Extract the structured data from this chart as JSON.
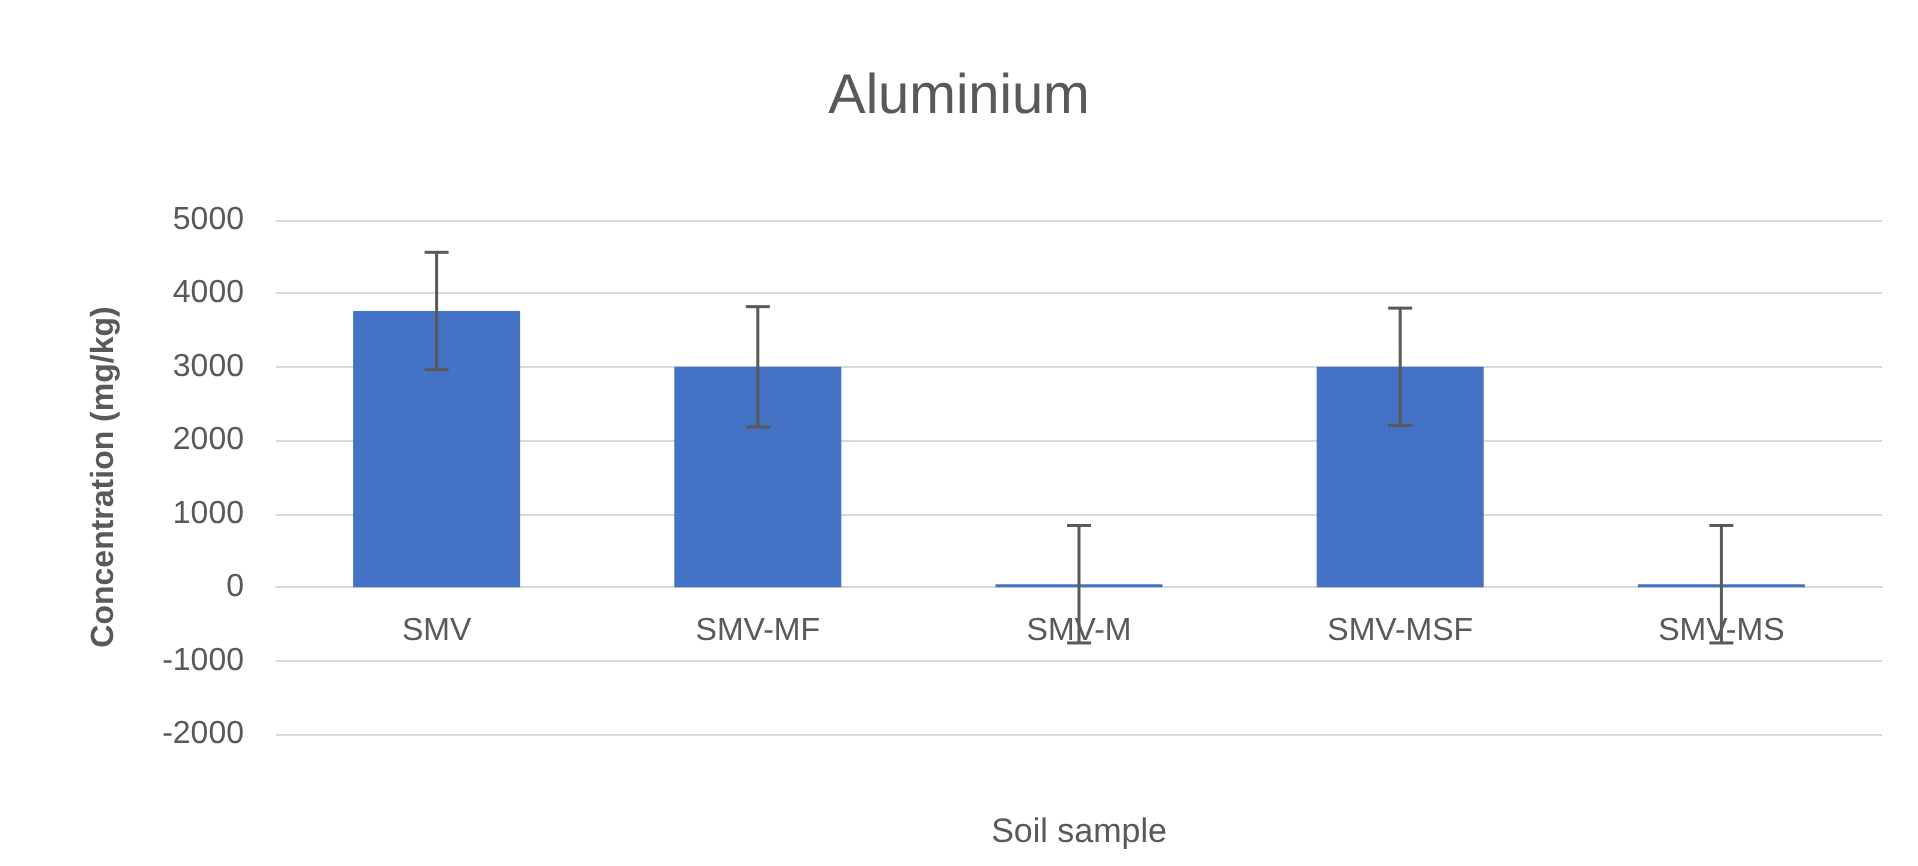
{
  "chart_data": {
    "type": "bar",
    "title": "Aluminium",
    "xlabel": "Soil sample",
    "ylabel": "Concentration (mg/kg)",
    "categories": [
      "SMV",
      "SMV-MF",
      "SMV-M",
      "SMV-MSF",
      "SMV-MS"
    ],
    "values": [
      3760,
      3000,
      40,
      3000,
      40
    ],
    "errors": [
      800,
      820,
      800,
      800,
      800
    ],
    "color": "#4472c4",
    "ylim": [
      -2000,
      5000
    ],
    "yticks": [
      -2000,
      -1000,
      0,
      1000,
      2000,
      3000,
      4000,
      5000
    ],
    "grid": "y"
  }
}
